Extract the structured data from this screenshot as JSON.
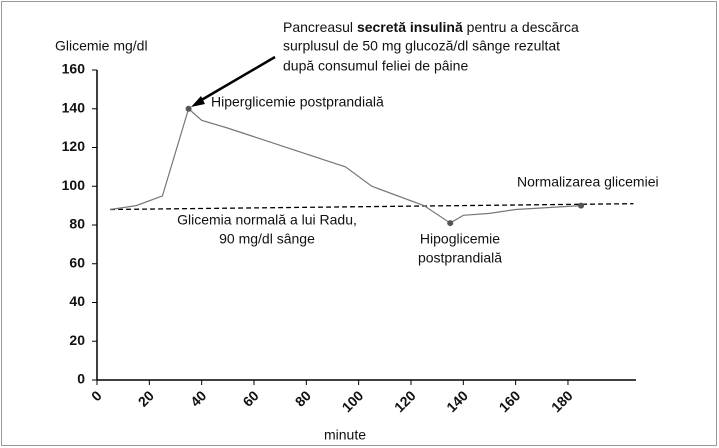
{
  "chart_data": {
    "type": "line",
    "y_label": "Glicemie mg/dl",
    "x_label": "minute",
    "x": [
      5,
      15,
      25,
      35,
      40,
      50,
      95,
      105,
      125,
      135,
      140,
      150,
      160,
      185
    ],
    "series": [
      {
        "color": "#777777",
        "values": [
          88,
          90,
          95,
          140,
          134,
          130,
          110,
          100,
          90,
          81,
          85,
          86,
          88,
          90
        ]
      }
    ],
    "markers": [
      3,
      9,
      13
    ],
    "reference_line": {
      "x": [
        5,
        205
      ],
      "y": [
        88,
        91
      ],
      "color": "#000000",
      "dashed": true
    },
    "xlim": [
      0,
      206
    ],
    "xticks": [
      0,
      20,
      40,
      60,
      80,
      100,
      120,
      140,
      160,
      180
    ],
    "ylim": [
      0,
      160
    ],
    "yticks": [
      0,
      20,
      40,
      60,
      80,
      100,
      120,
      140,
      160
    ],
    "annotations": {
      "insulin": {
        "line1": [
          "Pancreasul ",
          "secretă insulină",
          " pentru a descărca"
        ],
        "line2": "surplusul de 50 mg glucoză/dl sânge rezultat",
        "line3": "după consumul feliei de pâine"
      },
      "hyper": "Hiperglicemie postprandială",
      "normalization": "Normalizarea glicemiei",
      "normal": [
        "Glicemia normală a lui Radu,",
        "90 mg/dl sânge"
      ],
      "hypo": [
        "Hipoglicemie",
        "postprandială"
      ]
    }
  }
}
